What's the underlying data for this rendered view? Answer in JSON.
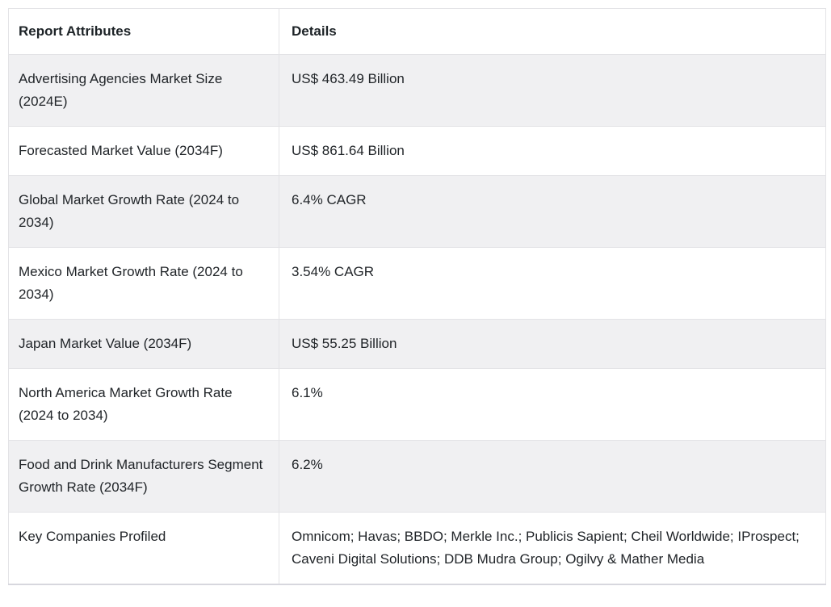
{
  "table": {
    "headers": [
      "Report Attributes",
      "Details"
    ],
    "rows": [
      {
        "attribute": "Advertising Agencies Market Size (2024E)",
        "detail": "US$ 463.49 Billion"
      },
      {
        "attribute": "Forecasted Market Value (2034F)",
        "detail": "US$ 861.64 Billion"
      },
      {
        "attribute": "Global Market Growth Rate (2024 to 2034)",
        "detail": "6.4% CAGR"
      },
      {
        "attribute": "Mexico Market Growth Rate (2024 to 2034)",
        "detail": "3.54% CAGR"
      },
      {
        "attribute": "Japan Market Value (2034F)",
        "detail": "US$ 55.25 Billion"
      },
      {
        "attribute": "North America Market Growth Rate (2024 to 2034)",
        "detail": "6.1%"
      },
      {
        "attribute": "Food and Drink Manufacturers Segment Growth Rate (2034F)",
        "detail": "6.2%"
      },
      {
        "attribute": "Key Companies Profiled",
        "detail": "Omnicom; Havas; BBDO; Merkle Inc.; Publicis Sapient; Cheil Worldwide; IProspect; Caveni Digital Solutions; DDB Mudra Group; Ogilvy & Mather Media"
      }
    ],
    "colors": {
      "stripe_bg": "#f0f0f2",
      "row_bg": "#ffffff",
      "border": "#e3e3e6",
      "bottom_border": "#d7d7de",
      "text": "#212529"
    }
  }
}
